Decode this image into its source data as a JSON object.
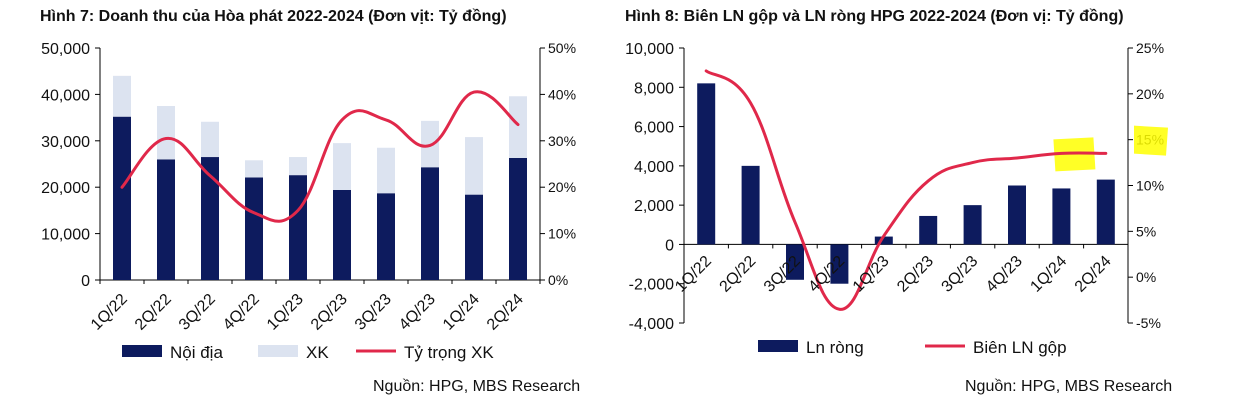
{
  "chart_data": [
    {
      "type": "bar",
      "stacked": true,
      "title": "Hình 7: Doanh thu của Hòa phát 2022-2024 (Đơn vịt: Tỷ đồng)",
      "source": "Nguồn: HPG, MBS Research",
      "categories": [
        "1Q/22",
        "2Q/22",
        "3Q/22",
        "4Q/22",
        "1Q/23",
        "2Q/23",
        "3Q/23",
        "4Q/23",
        "1Q/24",
        "2Q/24"
      ],
      "series": [
        {
          "name": "Nội địa",
          "color": "#0d1b5e",
          "axis": "left",
          "kind": "bar",
          "values": [
            35200,
            26000,
            26500,
            22100,
            22600,
            19400,
            18700,
            24300,
            18400,
            26300
          ]
        },
        {
          "name": "XK",
          "color": "#dce3f0",
          "axis": "left",
          "kind": "bar",
          "values": [
            8800,
            11500,
            7600,
            3700,
            3900,
            10100,
            9800,
            10000,
            12400,
            13300
          ]
        },
        {
          "name": "Tỷ trọng XK",
          "color": "#e0284a",
          "axis": "right",
          "kind": "line",
          "values": [
            20,
            30.5,
            22.5,
            14.5,
            15,
            34.5,
            34.5,
            29,
            40.5,
            33.5
          ]
        }
      ],
      "y_left": {
        "min": 0,
        "max": 50000,
        "ticks": [
          "0",
          "10,000",
          "20,000",
          "30,000",
          "40,000",
          "50,000"
        ]
      },
      "y_right": {
        "min": 0,
        "max": 50,
        "ticks": [
          "0%",
          "10%",
          "20%",
          "30%",
          "40%",
          "50%"
        ]
      }
    },
    {
      "type": "bar",
      "title": "Hình 8: Biên LN gộp và LN ròng HPG 2022-2024 (Đơn vị: Tỷ đồng)",
      "source": "Nguồn: HPG, MBS Research",
      "categories": [
        "1Q/22",
        "2Q/22",
        "3Q/22",
        "4Q/22",
        "1Q/23",
        "2Q/23",
        "3Q/23",
        "4Q/23",
        "1Q/24",
        "2Q/24"
      ],
      "series": [
        {
          "name": "Ln ròng",
          "color": "#0d1b5e",
          "axis": "left",
          "kind": "bar",
          "values": [
            8200,
            4000,
            -1800,
            -2000,
            400,
            1450,
            2000,
            3000,
            2850,
            3300
          ]
        },
        {
          "name": "Biên LN gộp",
          "color": "#e0284a",
          "axis": "right",
          "kind": "line",
          "values": [
            22.5,
            19,
            6,
            -3.5,
            4.5,
            10.5,
            12.5,
            13,
            13.5,
            13.5
          ]
        }
      ],
      "y_left": {
        "min": -4000,
        "max": 10000,
        "ticks": [
          "-4,000",
          "-2,000",
          "0",
          "2,000",
          "4,000",
          "6,000",
          "8,000",
          "10,000"
        ]
      },
      "y_right": {
        "min": -5,
        "max": 25,
        "ticks": [
          "-5%",
          "0%",
          "5%",
          "10%",
          "15%",
          "20%",
          "25%"
        ]
      },
      "highlight_color": "#ffff00"
    }
  ]
}
